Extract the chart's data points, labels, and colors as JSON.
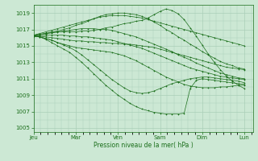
{
  "xlabel": "Pression niveau de la mer( hPa )",
  "ylim": [
    1004.5,
    1020.0
  ],
  "yticks": [
    1005,
    1007,
    1009,
    1011,
    1013,
    1015,
    1017,
    1019
  ],
  "xtick_labels": [
    "Jeu",
    "Mar",
    "Ven",
    "Sam",
    "Dim",
    "Lun"
  ],
  "xtick_positions": [
    0,
    1,
    2,
    3,
    4,
    5
  ],
  "bg_color": "#cce8d4",
  "grid_color": "#aacfb8",
  "line_color": "#1a6e1a",
  "figsize": [
    3.2,
    2.0
  ],
  "dpi": 100,
  "series": [
    [
      1016.2,
      1016.1,
      1015.9,
      1015.7,
      1015.4,
      1015.1,
      1014.8,
      1014.4,
      1013.9,
      1013.3,
      1012.7,
      1012.1,
      1011.5,
      1010.9,
      1010.4,
      1009.9,
      1009.5,
      1009.3,
      1009.2,
      1009.3,
      1009.5,
      1009.8,
      1010.1,
      1010.4,
      1010.6,
      1010.8,
      1011.0,
      1011.1,
      1011.2,
      1011.2,
      1011.1,
      1011.0,
      1010.9,
      1010.8,
      1010.7,
      1010.5
    ],
    [
      1016.2,
      1016.1,
      1015.8,
      1015.4,
      1015.0,
      1014.6,
      1014.2,
      1013.6,
      1013.0,
      1012.3,
      1011.6,
      1010.9,
      1010.2,
      1009.6,
      1009.0,
      1008.5,
      1008.0,
      1007.6,
      1007.3,
      1007.1,
      1006.9,
      1006.8,
      1006.7,
      1006.7,
      1006.7,
      1006.8,
      1009.8,
      1010.8,
      1011.0,
      1010.9,
      1010.8,
      1010.7,
      1010.6,
      1010.5,
      1010.4,
      1010.3
    ],
    [
      1016.2,
      1016.1,
      1015.9,
      1015.7,
      1015.4,
      1015.2,
      1015.0,
      1014.8,
      1014.7,
      1014.6,
      1014.5,
      1014.4,
      1014.3,
      1014.2,
      1014.0,
      1013.8,
      1013.5,
      1013.2,
      1012.8,
      1012.4,
      1012.0,
      1011.6,
      1011.2,
      1010.9,
      1010.6,
      1010.3,
      1010.1,
      1010.0,
      1009.9,
      1009.9,
      1009.9,
      1010.0,
      1010.0,
      1010.1,
      1010.2,
      1010.2
    ],
    [
      1016.2,
      1016.2,
      1016.1,
      1016.0,
      1015.9,
      1015.8,
      1015.7,
      1015.6,
      1015.6,
      1015.5,
      1015.5,
      1015.4,
      1015.4,
      1015.3,
      1015.3,
      1015.2,
      1015.2,
      1015.1,
      1015.0,
      1014.9,
      1014.8,
      1014.6,
      1014.4,
      1014.2,
      1014.0,
      1013.8,
      1013.6,
      1013.4,
      1013.2,
      1013.0,
      1012.8,
      1012.6,
      1012.4,
      1012.3,
      1012.2,
      1012.1
    ],
    [
      1016.2,
      1016.2,
      1016.3,
      1016.3,
      1016.3,
      1016.3,
      1016.2,
      1016.2,
      1016.1,
      1016.1,
      1016.0,
      1015.9,
      1015.8,
      1015.7,
      1015.5,
      1015.3,
      1015.1,
      1014.9,
      1014.7,
      1014.4,
      1014.1,
      1013.8,
      1013.5,
      1013.2,
      1012.9,
      1012.6,
      1012.3,
      1012.1,
      1011.9,
      1011.7,
      1011.5,
      1011.3,
      1011.2,
      1011.1,
      1011.0,
      1010.9
    ],
    [
      1016.3,
      1016.4,
      1016.5,
      1016.6,
      1016.7,
      1016.7,
      1016.7,
      1016.7,
      1016.8,
      1016.8,
      1016.9,
      1017.0,
      1017.2,
      1017.3,
      1017.5,
      1017.7,
      1017.8,
      1018.0,
      1018.1,
      1018.4,
      1018.8,
      1019.2,
      1019.5,
      1019.3,
      1018.9,
      1018.2,
      1017.2,
      1016.2,
      1015.1,
      1014.0,
      1013.0,
      1012.1,
      1011.3,
      1010.7,
      1010.2,
      1009.8
    ],
    [
      1016.3,
      1016.4,
      1016.5,
      1016.7,
      1016.8,
      1017.0,
      1017.2,
      1017.5,
      1017.7,
      1018.0,
      1018.3,
      1018.6,
      1018.8,
      1018.9,
      1019.0,
      1019.0,
      1018.9,
      1018.8,
      1018.6,
      1018.3,
      1017.9,
      1017.5,
      1017.0,
      1016.6,
      1016.1,
      1015.7,
      1015.2,
      1014.8,
      1014.3,
      1013.9,
      1013.5,
      1013.1,
      1012.8,
      1012.6,
      1012.3,
      1012.2
    ],
    [
      1016.3,
      1016.5,
      1016.7,
      1016.9,
      1017.1,
      1017.3,
      1017.5,
      1017.7,
      1017.9,
      1018.1,
      1018.3,
      1018.5,
      1018.6,
      1018.7,
      1018.7,
      1018.7,
      1018.6,
      1018.5,
      1018.4,
      1018.2,
      1018.0,
      1017.8,
      1017.6,
      1017.4,
      1017.2,
      1017.0,
      1016.8,
      1016.6,
      1016.4,
      1016.2,
      1016.0,
      1015.8,
      1015.6,
      1015.4,
      1015.2,
      1015.0
    ],
    [
      1016.3,
      1016.4,
      1016.5,
      1016.6,
      1016.7,
      1016.8,
      1016.9,
      1017.0,
      1017.1,
      1017.1,
      1017.1,
      1017.0,
      1017.0,
      1016.9,
      1016.7,
      1016.5,
      1016.3,
      1016.1,
      1015.8,
      1015.5,
      1015.2,
      1014.9,
      1014.6,
      1014.3,
      1013.9,
      1013.6,
      1013.3,
      1012.9,
      1012.6,
      1012.3,
      1012.0,
      1011.7,
      1011.5,
      1011.3,
      1011.1,
      1011.0
    ]
  ]
}
